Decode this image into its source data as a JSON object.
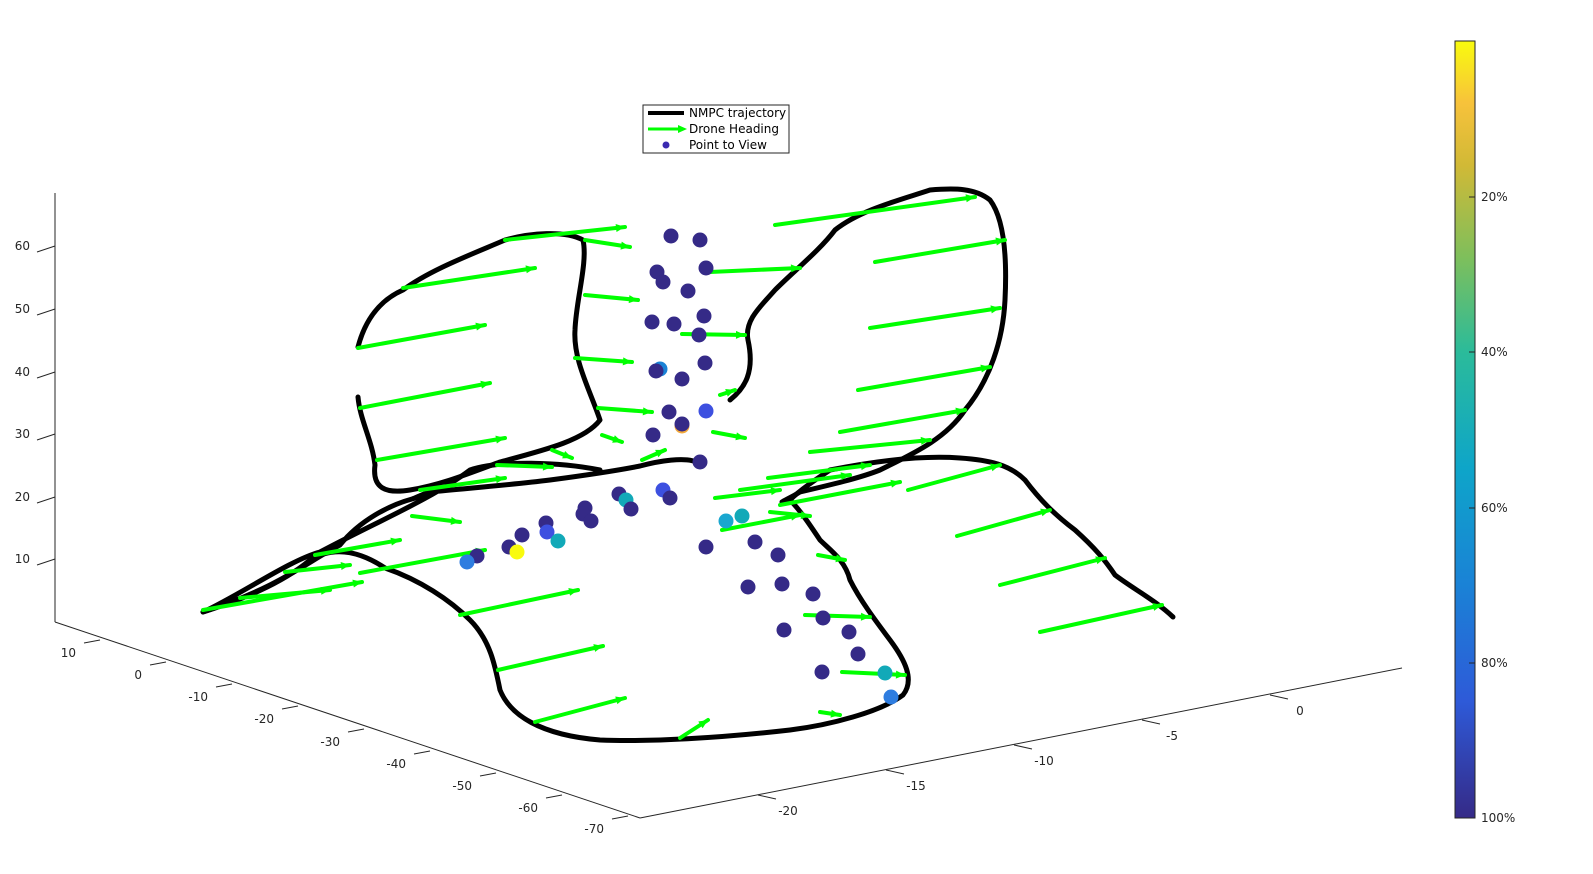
{
  "chart_data": {
    "type": "scatter",
    "title": "",
    "legend": {
      "placement": "top-center",
      "entries": [
        "NMPC trajectory",
        "Drone Heading",
        "Point to View"
      ]
    },
    "axes": {
      "x": {
        "ticks": [
          "-20",
          "-15",
          "-10",
          "-5",
          "0"
        ],
        "range": [
          -22,
          2
        ]
      },
      "y": {
        "ticks": [
          "10",
          "0",
          "-10",
          "-20",
          "-30",
          "-40",
          "-50",
          "-60",
          "-70"
        ],
        "range": [
          -75,
          15
        ]
      },
      "z": {
        "ticks": [
          "10",
          "20",
          "30",
          "40",
          "50",
          "60"
        ],
        "range": [
          0,
          70
        ]
      },
      "grid": false
    },
    "colorbar": {
      "ticks": [
        "20%",
        "40%",
        "60%",
        "80%",
        "100%"
      ],
      "colormap": "parula",
      "range_percent": [
        0,
        100
      ],
      "direction": "top-to-bottom"
    },
    "series": [
      {
        "name": "NMPC trajectory",
        "style": "line",
        "color": "#000000"
      },
      {
        "name": "Drone Heading",
        "style": "arrows",
        "color": "#00ff00"
      },
      {
        "name": "Point to View",
        "style": "markers",
        "color": "#3a2ab0"
      }
    ]
  },
  "colors": {
    "trajectory": "#000000",
    "heading": "#00ff00",
    "point_default": "#3a2ab0"
  }
}
